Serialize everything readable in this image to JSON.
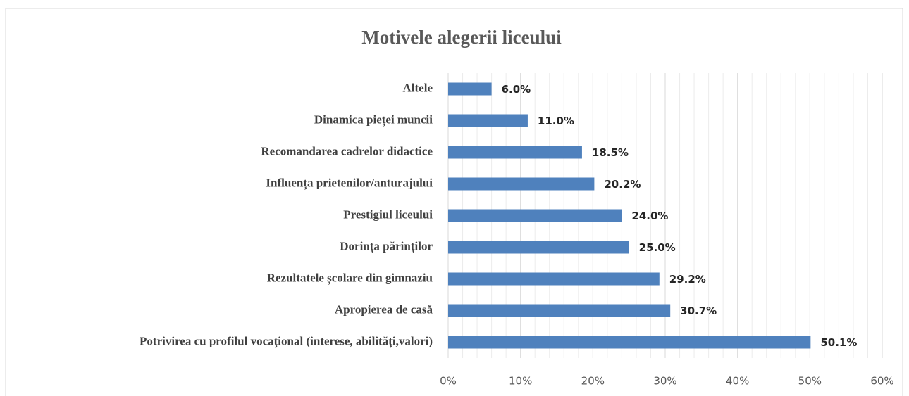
{
  "chart_data": {
    "type": "barh",
    "title": "Motivele alegerii liceului",
    "categories": [
      "Altele",
      "Dinamica pieței muncii",
      "Recomandarea cadrelor didactice",
      "Influența prietenilor/anturajului",
      "Prestigiul liceului",
      "Dorința părinților",
      "Rezultatele școlare din gimnaziu",
      "Apropierea de casă",
      "Potrivirea cu profilul vocațional (interese, abilități,valori)"
    ],
    "values": [
      6.0,
      11.0,
      18.5,
      20.2,
      24.0,
      25.0,
      29.2,
      30.7,
      50.1
    ],
    "value_labels": [
      "6.0%",
      "11.0%",
      "18.5%",
      "20.2%",
      "24.0%",
      "25.0%",
      "29.2%",
      "30.7%",
      "50.1%"
    ],
    "color": "#4f81bd",
    "xlim": [
      0,
      60
    ],
    "xticks": [
      {
        "value": 0,
        "label": "0%"
      },
      {
        "value": 10,
        "label": "10%"
      },
      {
        "value": 20,
        "label": "20%"
      },
      {
        "value": 30,
        "label": "30%"
      },
      {
        "value": 40,
        "label": "40%"
      },
      {
        "value": 50,
        "label": "50%"
      },
      {
        "value": 60,
        "label": "60%"
      }
    ],
    "minor_xticks": [
      2,
      4,
      6,
      8,
      12,
      14,
      16,
      18,
      22,
      24,
      26,
      28,
      32,
      34,
      36,
      38,
      42,
      44,
      46,
      48,
      52,
      54,
      56,
      58
    ],
    "grid": true
  }
}
